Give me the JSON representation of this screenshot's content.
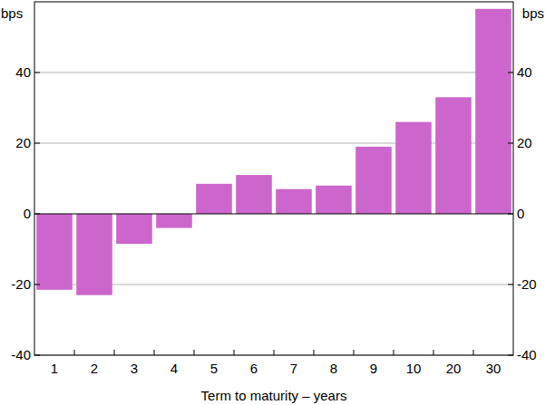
{
  "chart_data": {
    "type": "bar",
    "x_label": "Term to maturity – years",
    "y_label": "bps",
    "categories": [
      "1",
      "2",
      "3",
      "4",
      "5",
      "6",
      "7",
      "8",
      "9",
      "10",
      "20",
      "30"
    ],
    "values": [
      -21.5,
      -23,
      -8.5,
      -4,
      8.5,
      11,
      7,
      8,
      19,
      26,
      33,
      58
    ],
    "color": "#cc66cc",
    "ylim": [
      -40,
      60
    ],
    "yticks": [
      -40,
      -20,
      0,
      20,
      40
    ],
    "grid": true
  }
}
